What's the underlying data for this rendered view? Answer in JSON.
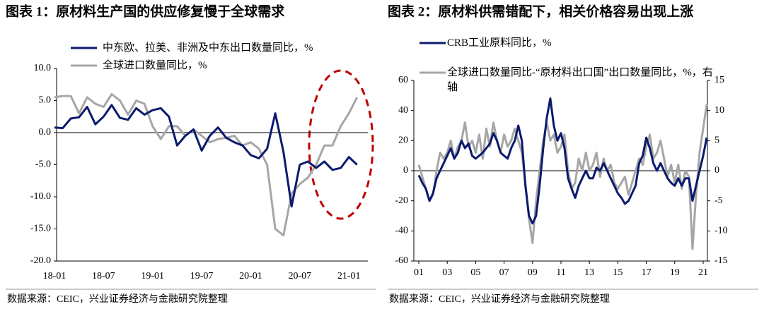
{
  "chart_data": [
    {
      "type": "line",
      "title": "图表 1：原材料生产国的供应修复慢于全球需求",
      "source": "数据来源：CEIC，兴业证券经济与金融研究院整理",
      "categories": [
        "18-01",
        null,
        null,
        null,
        null,
        null,
        "18-07",
        null,
        null,
        null,
        null,
        null,
        "19-01",
        null,
        null,
        null,
        null,
        null,
        "19-07",
        null,
        null,
        null,
        null,
        null,
        "20-01",
        null,
        null,
        null,
        null,
        null,
        "20-07",
        null,
        null,
        null,
        null,
        null,
        "21-01",
        null
      ],
      "series": [
        {
          "name": "中东欧、拉美、非洲及中东出口数量同比，%",
          "color": "#0b1a6e",
          "values": [
            0.8,
            0.7,
            2.2,
            2.4,
            4.0,
            1.3,
            2.5,
            4.3,
            2.3,
            2.0,
            3.8,
            2.8,
            3.5,
            3.8,
            2.5,
            -2.0,
            -0.5,
            0.5,
            -2.8,
            -0.5,
            0.8,
            -0.8,
            -1.5,
            -2.0,
            -3.5,
            -4.0,
            -2.5,
            3.0,
            -3.0,
            -11.5,
            -5.0,
            -4.5,
            -5.5,
            -4.5,
            -5.8,
            -5.5,
            -3.8,
            -5.0
          ]
        },
        {
          "name": "全球进口数量同比，%",
          "color": "#a6a6a6",
          "values": [
            5.5,
            5.7,
            5.7,
            3.0,
            5.5,
            4.5,
            4.0,
            6.0,
            5.0,
            2.8,
            5.0,
            4.5,
            1.0,
            -1.0,
            1.0,
            1.0,
            -0.5,
            0.5,
            -0.5,
            -1.5,
            -1.0,
            -0.8,
            -0.5,
            -2.0,
            -1.5,
            -2.5,
            -5.0,
            -15.0,
            -16.0,
            -9.5,
            -8.0,
            -7.0,
            -5.0,
            -2.0,
            -2.0,
            1.0,
            3.0,
            5.5
          ]
        }
      ],
      "ylim": [
        -20,
        10
      ],
      "yticks": [
        {
          "value": 10,
          "label": "10.0"
        },
        {
          "value": 5,
          "label": "5.0"
        },
        {
          "value": 0,
          "label": "0.0"
        },
        {
          "value": -5,
          "label": "-5.0"
        },
        {
          "value": -10,
          "label": "-10.0"
        },
        {
          "value": -15,
          "label": "-15.0"
        },
        {
          "value": -20,
          "label": "-20.0"
        }
      ]
    },
    {
      "type": "line",
      "title": "图表 2：原材料供需错配下，相关价格容易出现上涨",
      "source": "数据来源：CEIC，兴业证券经济与金融研究院整理",
      "x": [
        2001,
        2001.25,
        2001.5,
        2001.75,
        2002,
        2002.25,
        2002.5,
        2002.75,
        2003,
        2003.25,
        2003.5,
        2003.75,
        2004,
        2004.25,
        2004.5,
        2004.75,
        2005,
        2005.25,
        2005.5,
        2005.75,
        2006,
        2006.25,
        2006.5,
        2006.75,
        2007,
        2007.25,
        2007.5,
        2007.75,
        2008,
        2008.25,
        2008.5,
        2008.75,
        2009,
        2009.25,
        2009.5,
        2009.75,
        2010,
        2010.25,
        2010.5,
        2010.75,
        2011,
        2011.25,
        2011.5,
        2011.75,
        2012,
        2012.25,
        2012.5,
        2012.75,
        2013,
        2013.25,
        2013.5,
        2013.75,
        2014,
        2014.25,
        2014.5,
        2014.75,
        2015,
        2015.25,
        2015.5,
        2015.75,
        2016,
        2016.25,
        2016.5,
        2016.75,
        2017,
        2017.25,
        2017.5,
        2017.75,
        2018,
        2018.25,
        2018.5,
        2018.75,
        2019,
        2019.25,
        2019.5,
        2019.75,
        2020,
        2020.25,
        2020.5,
        2020.75,
        2021,
        2021.25
      ],
      "series": [
        {
          "name": "CRB工业原料同比，%",
          "color": "#0b1a6e",
          "values": [
            -3,
            -8,
            -12,
            -20,
            -15,
            -5,
            0,
            5,
            10,
            15,
            8,
            12,
            20,
            15,
            18,
            10,
            8,
            10,
            12,
            15,
            18,
            25,
            20,
            12,
            10,
            8,
            15,
            20,
            30,
            20,
            -10,
            -30,
            -35,
            -30,
            -10,
            15,
            35,
            48,
            30,
            20,
            25,
            15,
            -5,
            -12,
            -18,
            -10,
            -5,
            0,
            -5,
            -5,
            2,
            0,
            5,
            0,
            -5,
            -10,
            -15,
            -18,
            -22,
            -20,
            -15,
            -10,
            5,
            10,
            22,
            15,
            5,
            0,
            5,
            0,
            -5,
            -8,
            -10,
            -5,
            -10,
            -5,
            -5,
            -20,
            -10,
            0,
            10,
            22
          ]
        },
        {
          "name": "全球进口数量同比-“原材料出口国”出口数量同比，%，右轴",
          "color": "#a6a6a6",
          "axis": "y2",
          "values": [
            1,
            -1,
            -3,
            -5,
            -4,
            0,
            3,
            2,
            3,
            5,
            2,
            4,
            5,
            8,
            4,
            5,
            3,
            6,
            2,
            7,
            4,
            8,
            5,
            3,
            6,
            4,
            5,
            7,
            5,
            3,
            -2,
            -8,
            -12,
            -5,
            0,
            5,
            8,
            5,
            6,
            3,
            4,
            6,
            0,
            -3,
            -2,
            2,
            0,
            3,
            0,
            1,
            3,
            -1,
            2,
            0,
            1,
            -2,
            -3,
            -2,
            -1,
            -4,
            -2,
            0,
            2,
            1,
            4,
            6,
            2,
            3,
            5,
            2,
            -1,
            1,
            -2,
            1,
            -3,
            0,
            -1,
            -13,
            -4,
            3,
            7,
            11
          ]
        }
      ],
      "xlim": [
        2001,
        2021.3
      ],
      "xticks": [
        {
          "value": 2001,
          "label": "01"
        },
        {
          "value": 2003,
          "label": "03"
        },
        {
          "value": 2005,
          "label": "05"
        },
        {
          "value": 2007,
          "label": "07"
        },
        {
          "value": 2009,
          "label": "09"
        },
        {
          "value": 2011,
          "label": "11"
        },
        {
          "value": 2013,
          "label": "13"
        },
        {
          "value": 2015,
          "label": "15"
        },
        {
          "value": 2017,
          "label": "17"
        },
        {
          "value": 2019,
          "label": "19"
        },
        {
          "value": 2021,
          "label": "21"
        }
      ],
      "ylim": [
        -60,
        60
      ],
      "yticks": [
        60,
        40,
        20,
        0,
        -20,
        -40,
        -60
      ],
      "y2lim": [
        -15,
        15
      ],
      "y2ticks": [
        15,
        10,
        5,
        0,
        -5,
        -10,
        -15
      ]
    }
  ]
}
